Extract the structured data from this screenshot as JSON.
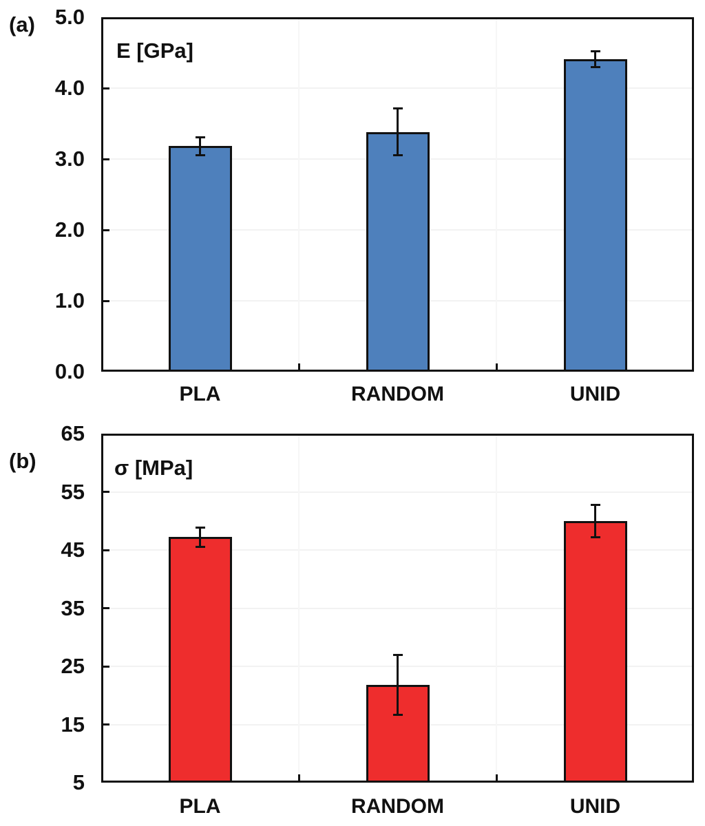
{
  "figure": {
    "background": "#ffffff",
    "text_color": "#111111",
    "gridline_color": "#f2f2f2"
  },
  "chart_data": [
    {
      "type": "bar",
      "panel_label": "(a)",
      "title": "E [GPa]",
      "categories": [
        "PLA",
        "RANDOM",
        "UNID"
      ],
      "values": [
        3.18,
        3.38,
        4.41
      ],
      "errors": [
        0.13,
        0.33,
        0.11
      ],
      "bar_color": "#4E80BC",
      "bar_border_color": "#111111",
      "ylim": [
        0,
        5
      ],
      "ytick_step": 1,
      "ytick_labels": [
        "0.0",
        "1.0",
        "2.0",
        "3.0",
        "4.0",
        "5.0"
      ],
      "grid": true,
      "legend": null,
      "xlabel": "",
      "ylabel": "E [GPa]"
    },
    {
      "type": "bar",
      "panel_label": "(b)",
      "title": "σ [MPa]",
      "categories": [
        "PLA",
        "RANDOM",
        "UNID"
      ],
      "values": [
        47.2,
        21.8,
        50.0
      ],
      "errors": [
        1.7,
        5.2,
        2.8
      ],
      "bar_color": "#EE2D2D",
      "bar_border_color": "#111111",
      "ylim": [
        5,
        65
      ],
      "ytick_step": 10,
      "ytick_labels": [
        "5",
        "15",
        "25",
        "35",
        "45",
        "55",
        "65"
      ],
      "grid": true,
      "legend": null,
      "xlabel": "",
      "ylabel": "σ [MPa]"
    }
  ]
}
